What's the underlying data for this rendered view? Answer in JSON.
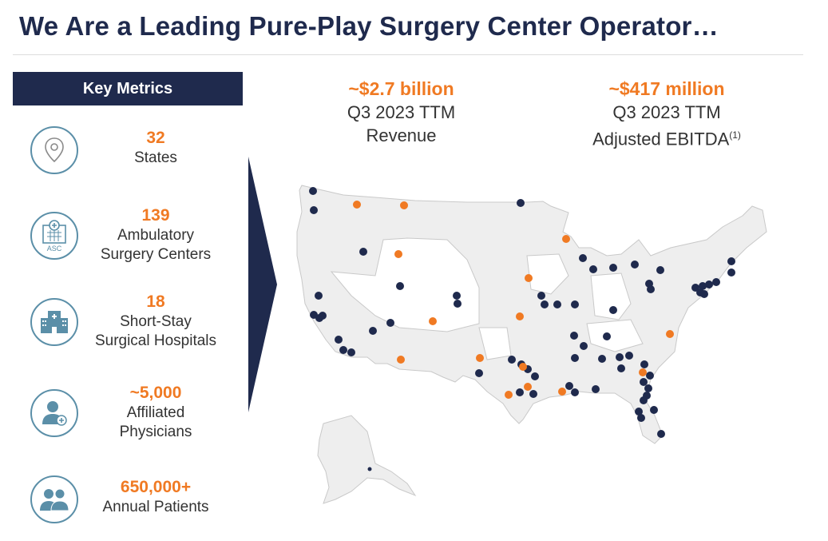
{
  "title": "We Are a Leading Pure-Play Surgery Center Operator…",
  "key_metrics": {
    "header": "Key Metrics",
    "items": [
      {
        "value": "32",
        "label1": "States",
        "label2": "",
        "icon": "location-pin-icon"
      },
      {
        "value": "139",
        "label1": "Ambulatory",
        "label2": "Surgery Centers",
        "icon": "asc-building-icon"
      },
      {
        "value": "18",
        "label1": "Short-Stay",
        "label2": "Surgical Hospitals",
        "icon": "hospital-icon"
      },
      {
        "value": "~5,000",
        "label1": "Affiliated",
        "label2": "Physicians",
        "icon": "physician-icon"
      },
      {
        "value": "650,000+",
        "label1": "Annual Patients",
        "label2": "",
        "icon": "patients-icon"
      }
    ]
  },
  "highlights": {
    "revenue": {
      "value": "~$2.7 billion",
      "line1": "Q3 2023 TTM",
      "line2": "Revenue",
      "footnote": ""
    },
    "ebitda": {
      "value": "~$417 million",
      "line1": "Q3 2023 TTM",
      "line2": "Adjusted EBITDA",
      "footnote": "(1)"
    }
  },
  "map": {
    "colors": {
      "navy": "#1f2a4d",
      "orange": "#f07a23",
      "land": "#eeeeee"
    }
  }
}
